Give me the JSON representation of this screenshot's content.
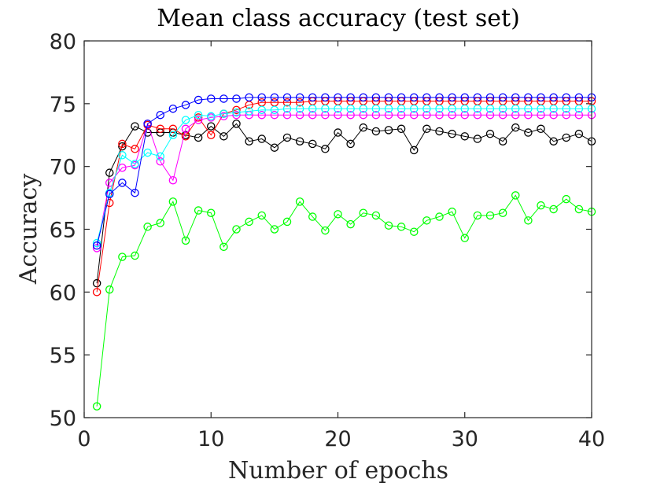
{
  "chart_data": {
    "type": "line",
    "title": "Mean class accuracy (test set)",
    "xlabel": "Number of epochs",
    "ylabel": "Accuracy",
    "xlim": [
      0,
      40
    ],
    "ylim": [
      50,
      80
    ],
    "xticks": [
      0,
      10,
      20,
      30,
      40
    ],
    "yticks": [
      50,
      55,
      60,
      65,
      70,
      75,
      80
    ],
    "grid": false,
    "x": [
      1,
      2,
      3,
      4,
      5,
      6,
      7,
      8,
      9,
      10,
      11,
      12,
      13,
      14,
      15,
      16,
      17,
      18,
      19,
      20,
      21,
      22,
      23,
      24,
      25,
      26,
      27,
      28,
      29,
      30,
      31,
      32,
      33,
      34,
      35,
      36,
      37,
      38,
      39,
      40
    ],
    "series": [
      {
        "name": "green",
        "color": "#00ff00",
        "values": [
          50.9,
          60.2,
          62.8,
          62.9,
          65.2,
          65.5,
          67.2,
          64.1,
          66.5,
          66.3,
          63.6,
          65.0,
          65.6,
          66.1,
          65.0,
          65.6,
          67.2,
          66.0,
          64.9,
          66.2,
          65.4,
          66.3,
          66.1,
          65.3,
          65.2,
          64.8,
          65.7,
          66.0,
          66.4,
          64.3,
          66.1,
          66.1,
          66.3,
          67.7,
          65.7,
          66.9,
          66.6,
          67.4,
          66.6,
          66.4
        ]
      },
      {
        "name": "black",
        "color": "#000000",
        "values": [
          60.7,
          69.5,
          71.6,
          73.2,
          72.7,
          72.7,
          72.7,
          72.5,
          72.3,
          73.2,
          72.4,
          73.4,
          72.0,
          72.2,
          71.5,
          72.3,
          72.0,
          71.8,
          71.4,
          72.7,
          71.8,
          73.1,
          72.8,
          72.9,
          73.0,
          71.3,
          73.0,
          72.8,
          72.6,
          72.4,
          72.2,
          72.6,
          72.0,
          73.1,
          72.7,
          73.0,
          72.0,
          72.3,
          72.6,
          72.0
        ]
      },
      {
        "name": "red",
        "color": "#ff0000",
        "values": [
          60.0,
          67.1,
          71.8,
          71.4,
          73.3,
          73.0,
          73.0,
          72.4,
          73.9,
          72.5,
          74.2,
          74.5,
          74.9,
          75.1,
          75.1,
          75.1,
          75.1,
          75.2,
          75.2,
          75.2,
          75.2,
          75.2,
          75.2,
          75.2,
          75.2,
          75.2,
          75.2,
          75.2,
          75.2,
          75.2,
          75.2,
          75.2,
          75.2,
          75.2,
          75.2,
          75.2,
          75.2,
          75.2,
          75.2,
          75.2
        ]
      },
      {
        "name": "magenta",
        "color": "#ff00ff",
        "values": [
          63.5,
          68.7,
          69.9,
          70.1,
          73.4,
          70.4,
          68.9,
          73.0,
          73.7,
          73.9,
          74.0,
          74.1,
          74.1,
          74.1,
          74.1,
          74.1,
          74.1,
          74.1,
          74.1,
          74.1,
          74.1,
          74.1,
          74.1,
          74.1,
          74.1,
          74.1,
          74.1,
          74.1,
          74.1,
          74.1,
          74.1,
          74.1,
          74.1,
          74.1,
          74.1,
          74.1,
          74.1,
          74.1,
          74.1,
          74.1
        ]
      },
      {
        "name": "cyan",
        "color": "#00ffff",
        "values": [
          63.9,
          67.9,
          70.9,
          70.2,
          71.1,
          70.8,
          72.5,
          73.7,
          74.1,
          74.0,
          74.2,
          74.3,
          74.4,
          74.5,
          74.5,
          74.6,
          74.6,
          74.6,
          74.6,
          74.6,
          74.6,
          74.6,
          74.6,
          74.6,
          74.6,
          74.6,
          74.6,
          74.6,
          74.6,
          74.6,
          74.6,
          74.6,
          74.6,
          74.6,
          74.6,
          74.6,
          74.6,
          74.6,
          74.6,
          74.6
        ]
      },
      {
        "name": "blue",
        "color": "#0000ff",
        "values": [
          63.7,
          67.8,
          68.7,
          67.9,
          73.4,
          74.1,
          74.6,
          74.9,
          75.3,
          75.4,
          75.4,
          75.4,
          75.5,
          75.5,
          75.5,
          75.5,
          75.5,
          75.5,
          75.5,
          75.5,
          75.5,
          75.5,
          75.5,
          75.5,
          75.5,
          75.5,
          75.5,
          75.5,
          75.5,
          75.5,
          75.5,
          75.5,
          75.5,
          75.5,
          75.5,
          75.5,
          75.5,
          75.5,
          75.5,
          75.5
        ]
      }
    ]
  }
}
